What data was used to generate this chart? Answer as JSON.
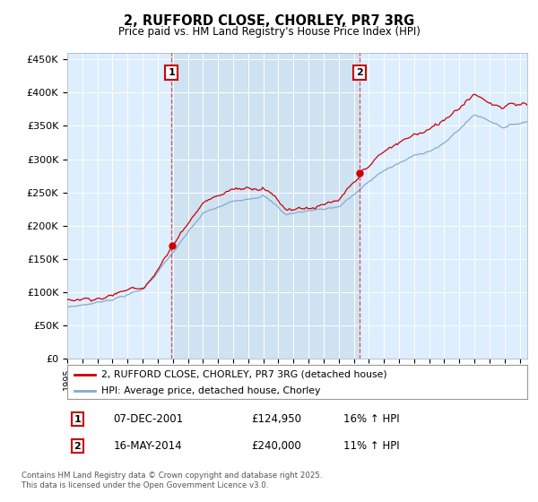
{
  "title": "2, RUFFORD CLOSE, CHORLEY, PR7 3RG",
  "subtitle": "Price paid vs. HM Land Registry's House Price Index (HPI)",
  "ylabel_ticks": [
    "£0",
    "£50K",
    "£100K",
    "£150K",
    "£200K",
    "£250K",
    "£300K",
    "£350K",
    "£400K",
    "£450K"
  ],
  "ytick_values": [
    0,
    50000,
    100000,
    150000,
    200000,
    250000,
    300000,
    350000,
    400000,
    450000
  ],
  "xlim_start": 1995.0,
  "xlim_end": 2025.5,
  "ylim_min": 0,
  "ylim_max": 460000,
  "sale1_year": 2001.92,
  "sale1_price": 124950,
  "sale2_year": 2014.37,
  "sale2_price": 240000,
  "sale1_label": "1",
  "sale2_label": "2",
  "line1_color": "#cc0000",
  "line2_color": "#88aacc",
  "shade_color": "#cce0f0",
  "background_color": "#ddeeff",
  "plot_bg": "#ddeeff",
  "legend1": "2, RUFFORD CLOSE, CHORLEY, PR7 3RG (detached house)",
  "legend2": "HPI: Average price, detached house, Chorley",
  "table_row1": [
    "1",
    "07-DEC-2001",
    "£124,950",
    "16% ↑ HPI"
  ],
  "table_row2": [
    "2",
    "16-MAY-2014",
    "£240,000",
    "11% ↑ HPI"
  ],
  "footer": "Contains HM Land Registry data © Crown copyright and database right 2025.\nThis data is licensed under the Open Government Licence v3.0."
}
